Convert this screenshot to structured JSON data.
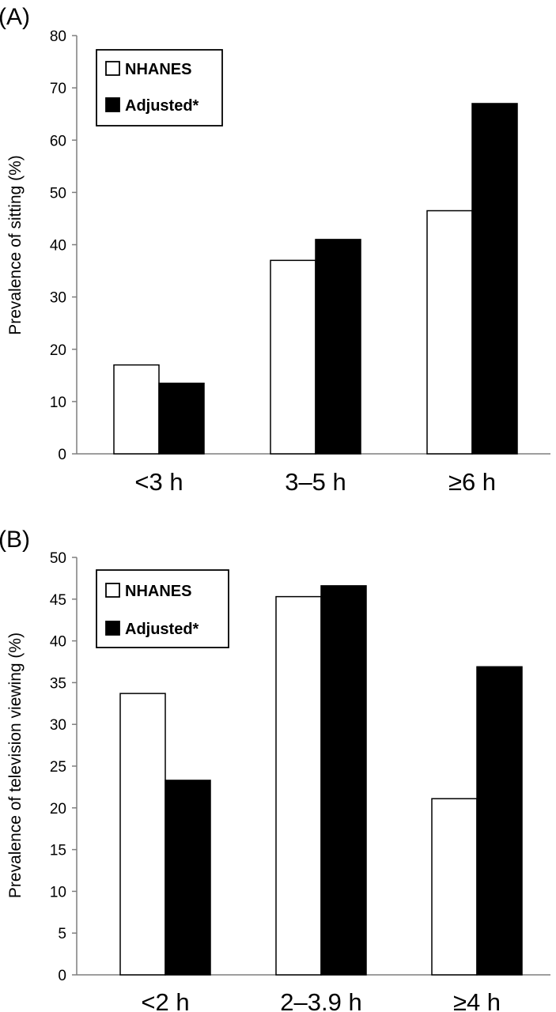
{
  "chart_data": [
    {
      "type": "bar",
      "panel_label": "(A)",
      "title": "",
      "xlabel": "",
      "ylabel": "Prevalence of sitting (%)",
      "ylim": [
        0,
        80
      ],
      "yticks": [
        0,
        10,
        20,
        30,
        40,
        50,
        60,
        70,
        80
      ],
      "categories": [
        "<3 h",
        "3–5 h",
        "≥6 h"
      ],
      "series": [
        {
          "name": "NHANES",
          "values": [
            17,
            37,
            46.5
          ],
          "color": "#ffffff"
        },
        {
          "name": "Adjusted*",
          "values": [
            13.5,
            41,
            67
          ],
          "color": "#000000"
        }
      ],
      "legend_position": "top-left",
      "grid": false
    },
    {
      "type": "bar",
      "panel_label": "(B)",
      "title": "",
      "xlabel": "",
      "ylabel": "Prevalence of television viewing (%)",
      "ylim": [
        0,
        50
      ],
      "yticks": [
        0,
        5,
        10,
        15,
        20,
        25,
        30,
        35,
        40,
        45,
        50
      ],
      "categories": [
        "<2 h",
        "2–3.9 h",
        "≥4 h"
      ],
      "series": [
        {
          "name": "NHANES",
          "values": [
            33.7,
            45.3,
            21.1
          ],
          "color": "#ffffff"
        },
        {
          "name": "Adjusted*",
          "values": [
            23.3,
            46.6,
            36.9
          ],
          "color": "#000000"
        }
      ],
      "legend_position": "top-left",
      "grid": false
    }
  ]
}
